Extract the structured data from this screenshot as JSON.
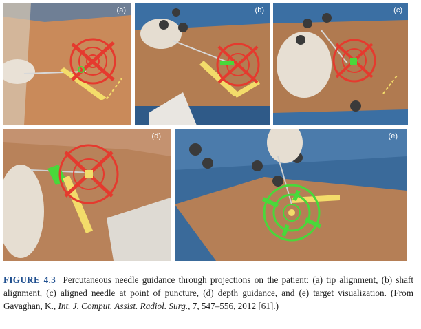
{
  "panels": [
    {
      "id": "a",
      "label": "(a)"
    },
    {
      "id": "b",
      "label": "(b)"
    },
    {
      "id": "c",
      "label": "(c)"
    },
    {
      "id": "d",
      "label": "(d)"
    },
    {
      "id": "e",
      "label": "(e)"
    }
  ],
  "caption": {
    "figure_label": "FIGURE 4.3",
    "text_1": "Percutaneous needle guidance through projections on the patient: (a) tip alignment, (b) shaft alignment, (c) aligned needle at point of puncture, (d) depth guidance, and (e) target visualization. (From Gavaghan, K., ",
    "journal": "Int. J. Comput. Assist. Radiol. Surg.",
    "text_2": ", 7, 547–556, 2012 [61].)"
  },
  "colors": {
    "skin": "#c98a5a",
    "drape": "#3b6fa3",
    "target_red": "#e53a2e",
    "target_green": "#49d83a",
    "projection_yellow": "#f3dc6a",
    "caption_label": "#1f4f8f"
  }
}
